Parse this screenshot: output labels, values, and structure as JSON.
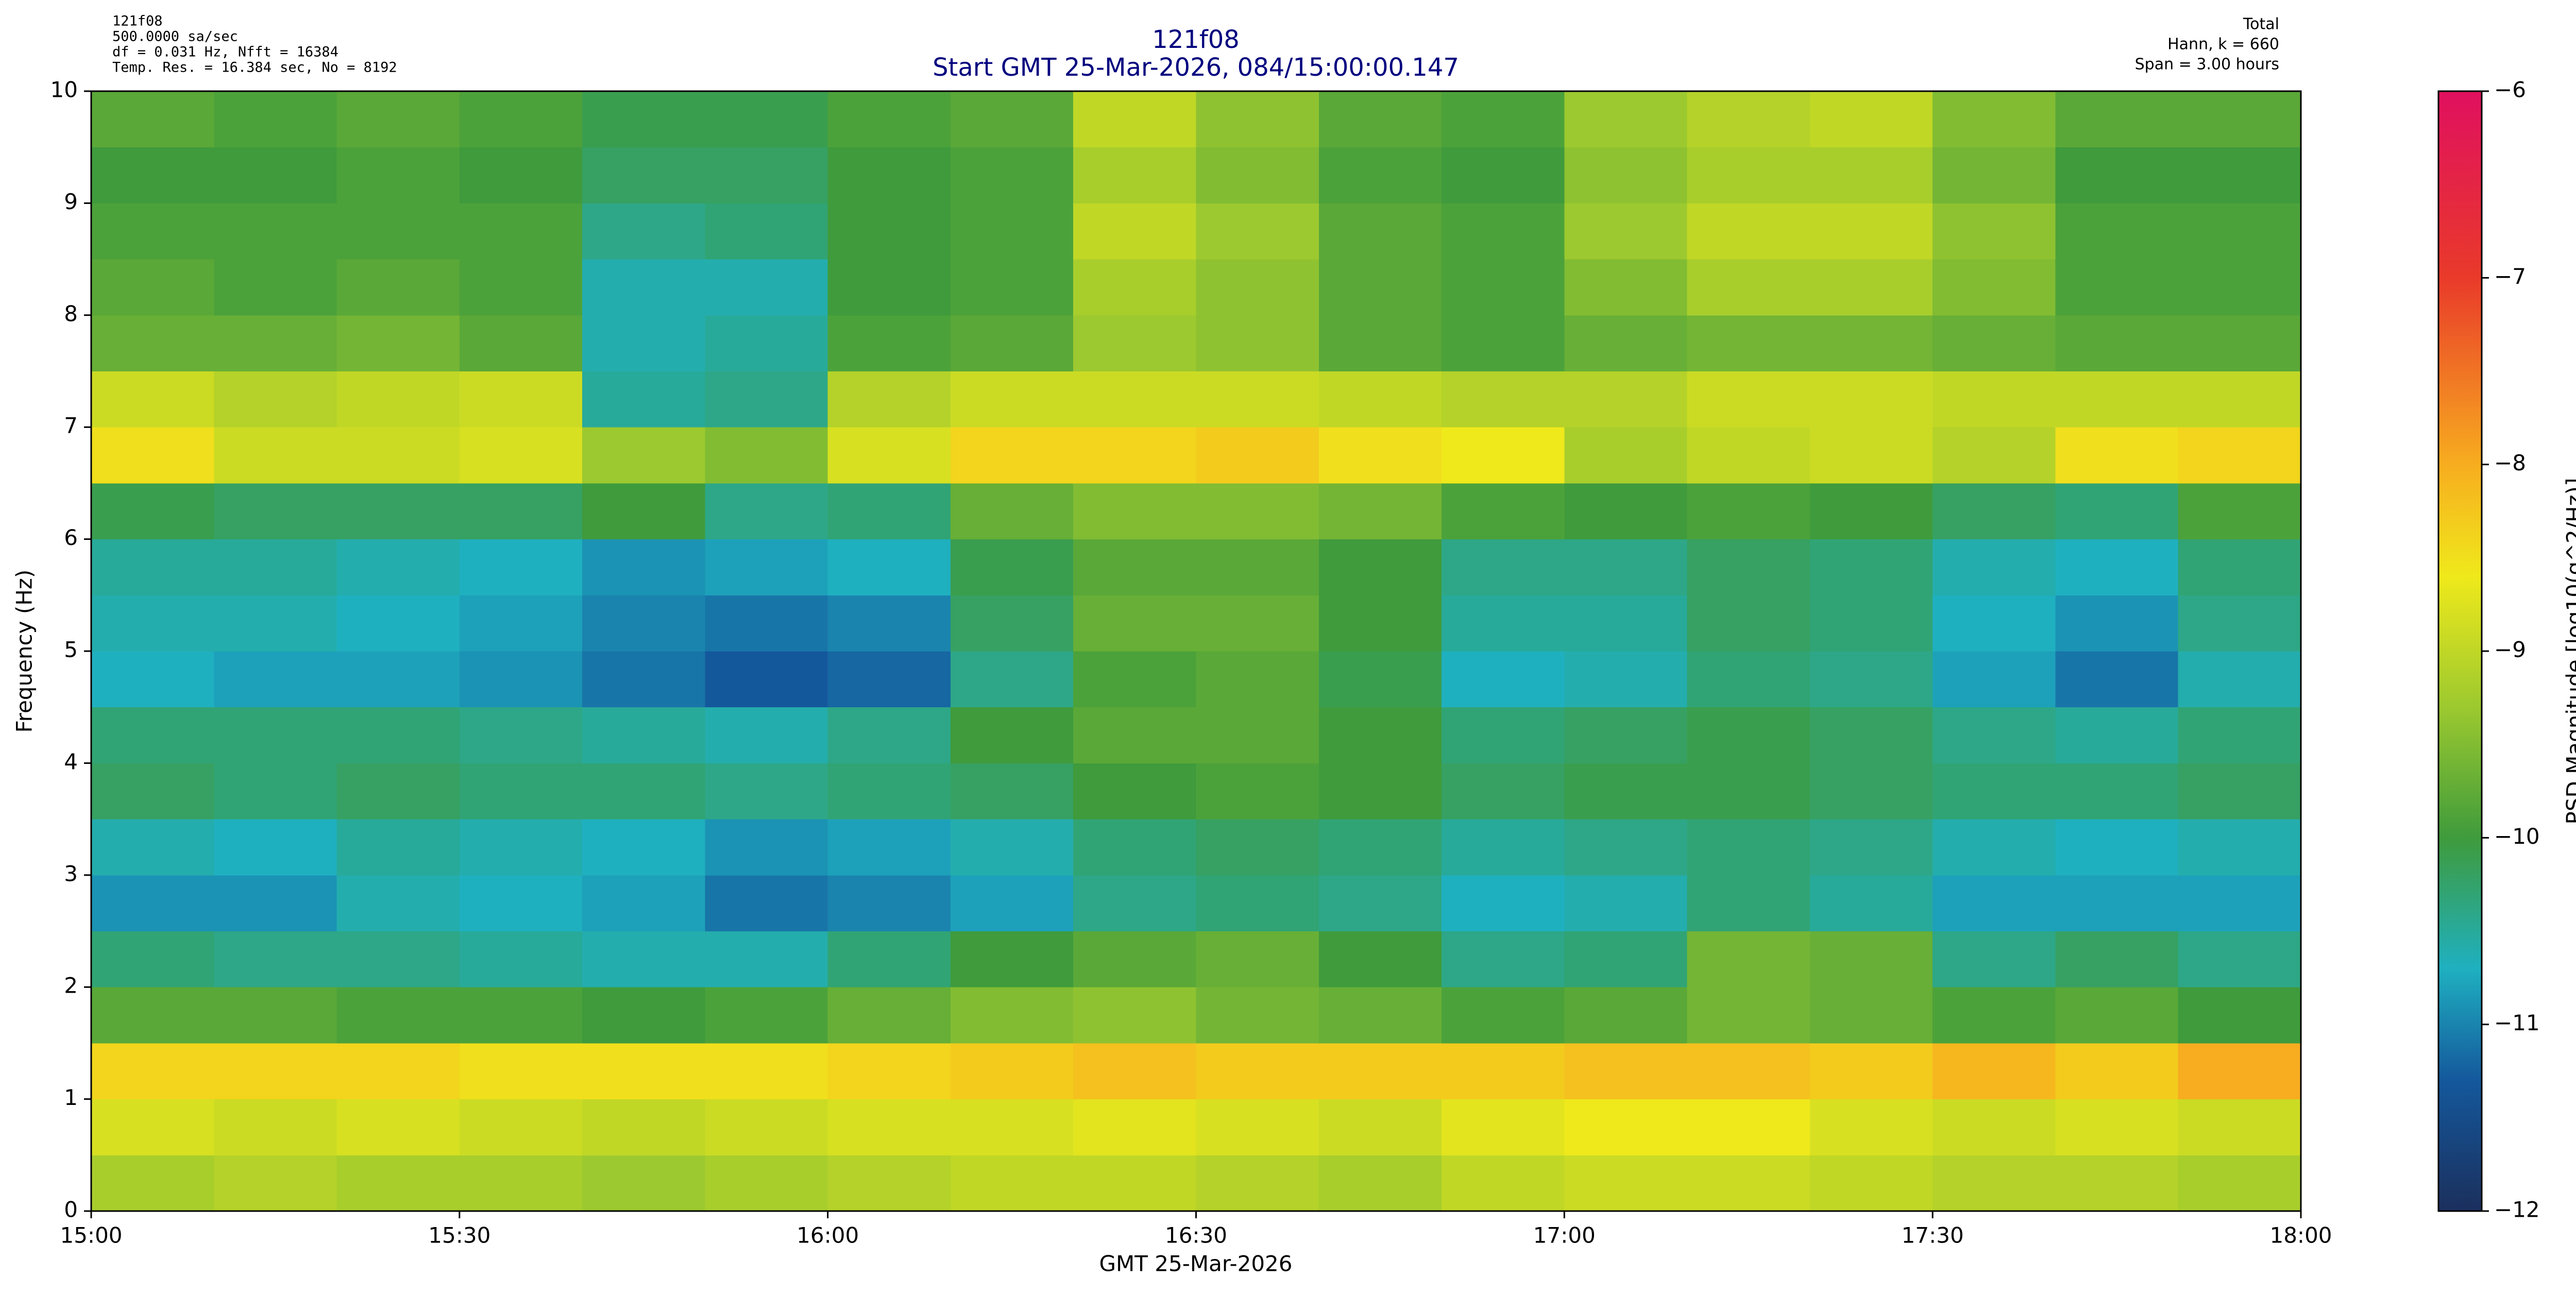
{
  "chart_data": {
    "type": "heatmap",
    "info_left": [
      "121f08",
      "500.0000 sa/sec",
      "df = 0.031 Hz,  Nfft = 16384",
      "Temp. Res. = 16.384 sec, No = 8192"
    ],
    "info_right": [
      "Total",
      "Hann, k = 660",
      "Span = 3.00 hours"
    ],
    "title": "121f08",
    "subtitle": "Start GMT 25-Mar-2026, 084/15:00:00.147",
    "x_label": "GMT 25-Mar-2026",
    "y_label": "Frequency (Hz)",
    "colorbar_label": "PSD Magnitude [log10(g^2/Hz)]",
    "xlim": [
      "15:00",
      "18:00"
    ],
    "xticks": [
      "15:00",
      "15:30",
      "16:00",
      "16:30",
      "17:00",
      "17:30",
      "18:00"
    ],
    "ylim": [
      0,
      10
    ],
    "yticks": [
      0,
      1,
      2,
      3,
      4,
      5,
      6,
      7,
      8,
      9,
      10
    ],
    "clim": [
      -12,
      -6
    ],
    "cticks": [
      {
        "value": -12,
        "label": "−12"
      },
      {
        "value": -11,
        "label": "−11"
      },
      {
        "value": -10,
        "label": "−10"
      },
      {
        "value": -9,
        "label": "−9"
      },
      {
        "value": -8,
        "label": "−8"
      },
      {
        "value": -7,
        "label": "−7"
      },
      {
        "value": -6,
        "label": "−6"
      }
    ],
    "colorscale": [
      {
        "value": -12,
        "color": "#1b2f5c"
      },
      {
        "value": -11.3,
        "color": "#14589c"
      },
      {
        "value": -10.7,
        "color": "#1fb0c0"
      },
      {
        "value": -10,
        "color": "#3f9b3c"
      },
      {
        "value": -9.3,
        "color": "#9cc92f"
      },
      {
        "value": -8.6,
        "color": "#efe91b"
      },
      {
        "value": -8,
        "color": "#f7ad1f"
      },
      {
        "value": -7,
        "color": "#e93a2a"
      },
      {
        "value": -6,
        "color": "#e0105f"
      }
    ],
    "x": [
      "15:00",
      "15:10",
      "15:20",
      "15:30",
      "15:40",
      "15:50",
      "16:00",
      "16:10",
      "16:20",
      "16:30",
      "16:40",
      "16:50",
      "17:00",
      "17:10",
      "17:20",
      "17:30",
      "17:40",
      "17:50"
    ],
    "y": [
      0,
      0.5,
      1,
      1.5,
      2,
      2.5,
      3,
      3.5,
      4,
      4.5,
      5,
      5.5,
      6,
      6.5,
      7,
      7.5,
      8,
      8.5,
      9,
      9.5
    ],
    "values": [
      [
        -9.2,
        -9.1,
        -9.2,
        -9.2,
        -9.3,
        -9.2,
        -9.1,
        -9.0,
        -9.0,
        -9.1,
        -9.2,
        -9.0,
        -8.9,
        -8.9,
        -9.0,
        -9.1,
        -9.1,
        -9.2
      ],
      [
        -8.8,
        -8.9,
        -8.8,
        -8.9,
        -9.0,
        -8.9,
        -8.8,
        -8.8,
        -8.7,
        -8.8,
        -8.9,
        -8.7,
        -8.6,
        -8.6,
        -8.8,
        -8.9,
        -8.8,
        -8.9
      ],
      [
        -8.4,
        -8.4,
        -8.4,
        -8.5,
        -8.5,
        -8.5,
        -8.4,
        -8.3,
        -8.2,
        -8.3,
        -8.3,
        -8.3,
        -8.2,
        -8.2,
        -8.3,
        -8.1,
        -8.3,
        -8.0
      ],
      [
        -9.8,
        -9.8,
        -9.9,
        -9.9,
        -10.0,
        -9.9,
        -9.7,
        -9.5,
        -9.4,
        -9.6,
        -9.7,
        -9.9,
        -9.8,
        -9.6,
        -9.7,
        -9.9,
        -9.8,
        -10.0
      ],
      [
        -10.3,
        -10.4,
        -10.4,
        -10.5,
        -10.6,
        -10.6,
        -10.3,
        -10.0,
        -9.8,
        -9.7,
        -10.0,
        -10.4,
        -10.3,
        -9.6,
        -9.7,
        -10.4,
        -10.2,
        -10.4
      ],
      [
        -10.9,
        -10.9,
        -10.6,
        -10.7,
        -10.8,
        -11.1,
        -11.0,
        -10.8,
        -10.4,
        -10.3,
        -10.4,
        -10.7,
        -10.6,
        -10.3,
        -10.5,
        -10.8,
        -10.8,
        -10.8
      ],
      [
        -10.6,
        -10.7,
        -10.5,
        -10.6,
        -10.7,
        -10.9,
        -10.8,
        -10.6,
        -10.3,
        -10.2,
        -10.3,
        -10.5,
        -10.4,
        -10.3,
        -10.4,
        -10.6,
        -10.7,
        -10.6
      ],
      [
        -10.2,
        -10.3,
        -10.2,
        -10.3,
        -10.3,
        -10.4,
        -10.3,
        -10.2,
        -10.0,
        -9.9,
        -10.0,
        -10.2,
        -10.1,
        -10.1,
        -10.2,
        -10.3,
        -10.3,
        -10.2
      ],
      [
        -10.3,
        -10.3,
        -10.3,
        -10.4,
        -10.5,
        -10.6,
        -10.4,
        -10.0,
        -9.8,
        -9.8,
        -10.0,
        -10.3,
        -10.2,
        -10.1,
        -10.2,
        -10.4,
        -10.5,
        -10.3
      ],
      [
        -10.7,
        -10.8,
        -10.8,
        -10.9,
        -11.1,
        -11.3,
        -11.2,
        -10.4,
        -9.9,
        -9.8,
        -10.1,
        -10.7,
        -10.6,
        -10.3,
        -10.4,
        -10.8,
        -11.1,
        -10.6
      ],
      [
        -10.6,
        -10.6,
        -10.7,
        -10.8,
        -11.0,
        -11.1,
        -11.0,
        -10.2,
        -9.7,
        -9.7,
        -10.0,
        -10.5,
        -10.5,
        -10.2,
        -10.3,
        -10.7,
        -10.9,
        -10.4
      ],
      [
        -10.5,
        -10.5,
        -10.6,
        -10.7,
        -10.9,
        -10.8,
        -10.7,
        -10.1,
        -9.8,
        -9.8,
        -10.0,
        -10.4,
        -10.4,
        -10.2,
        -10.3,
        -10.6,
        -10.7,
        -10.3
      ],
      [
        -10.1,
        -10.2,
        -10.2,
        -10.2,
        -10.0,
        -10.4,
        -10.3,
        -9.7,
        -9.5,
        -9.5,
        -9.6,
        -9.9,
        -10.0,
        -9.9,
        -10.0,
        -10.2,
        -10.3,
        -9.9
      ],
      [
        -8.5,
        -8.9,
        -8.9,
        -8.8,
        -9.3,
        -9.5,
        -8.8,
        -8.4,
        -8.4,
        -8.3,
        -8.5,
        -8.6,
        -9.2,
        -9.0,
        -8.9,
        -9.1,
        -8.5,
        -8.4
      ],
      [
        -8.9,
        -9.1,
        -9.0,
        -8.9,
        -10.5,
        -10.4,
        -9.1,
        -8.9,
        -8.9,
        -8.9,
        -9.0,
        -9.1,
        -9.1,
        -8.9,
        -8.9,
        -9.0,
        -9.0,
        -9.0
      ],
      [
        -9.7,
        -9.7,
        -9.6,
        -9.8,
        -10.6,
        -10.5,
        -9.9,
        -9.8,
        -9.3,
        -9.4,
        -9.8,
        -9.9,
        -9.7,
        -9.6,
        -9.6,
        -9.7,
        -9.8,
        -9.8
      ],
      [
        -9.8,
        -9.9,
        -9.8,
        -9.9,
        -10.6,
        -10.6,
        -10.0,
        -9.9,
        -9.2,
        -9.4,
        -9.8,
        -9.9,
        -9.5,
        -9.2,
        -9.2,
        -9.5,
        -9.9,
        -9.9
      ],
      [
        -9.9,
        -9.9,
        -9.9,
        -9.9,
        -10.4,
        -10.3,
        -10.0,
        -9.9,
        -9.0,
        -9.3,
        -9.8,
        -9.9,
        -9.3,
        -9.0,
        -9.0,
        -9.4,
        -9.9,
        -9.9
      ],
      [
        -10.0,
        -10.0,
        -9.9,
        -10.0,
        -10.2,
        -10.2,
        -10.0,
        -9.9,
        -9.2,
        -9.5,
        -9.9,
        -10.0,
        -9.4,
        -9.2,
        -9.2,
        -9.6,
        -10.0,
        -10.0
      ],
      [
        -9.8,
        -9.9,
        -9.8,
        -9.9,
        -10.1,
        -10.1,
        -9.9,
        -9.8,
        -9.0,
        -9.4,
        -9.8,
        -9.9,
        -9.3,
        -9.1,
        -9.0,
        -9.5,
        -9.8,
        -9.8
      ]
    ]
  }
}
